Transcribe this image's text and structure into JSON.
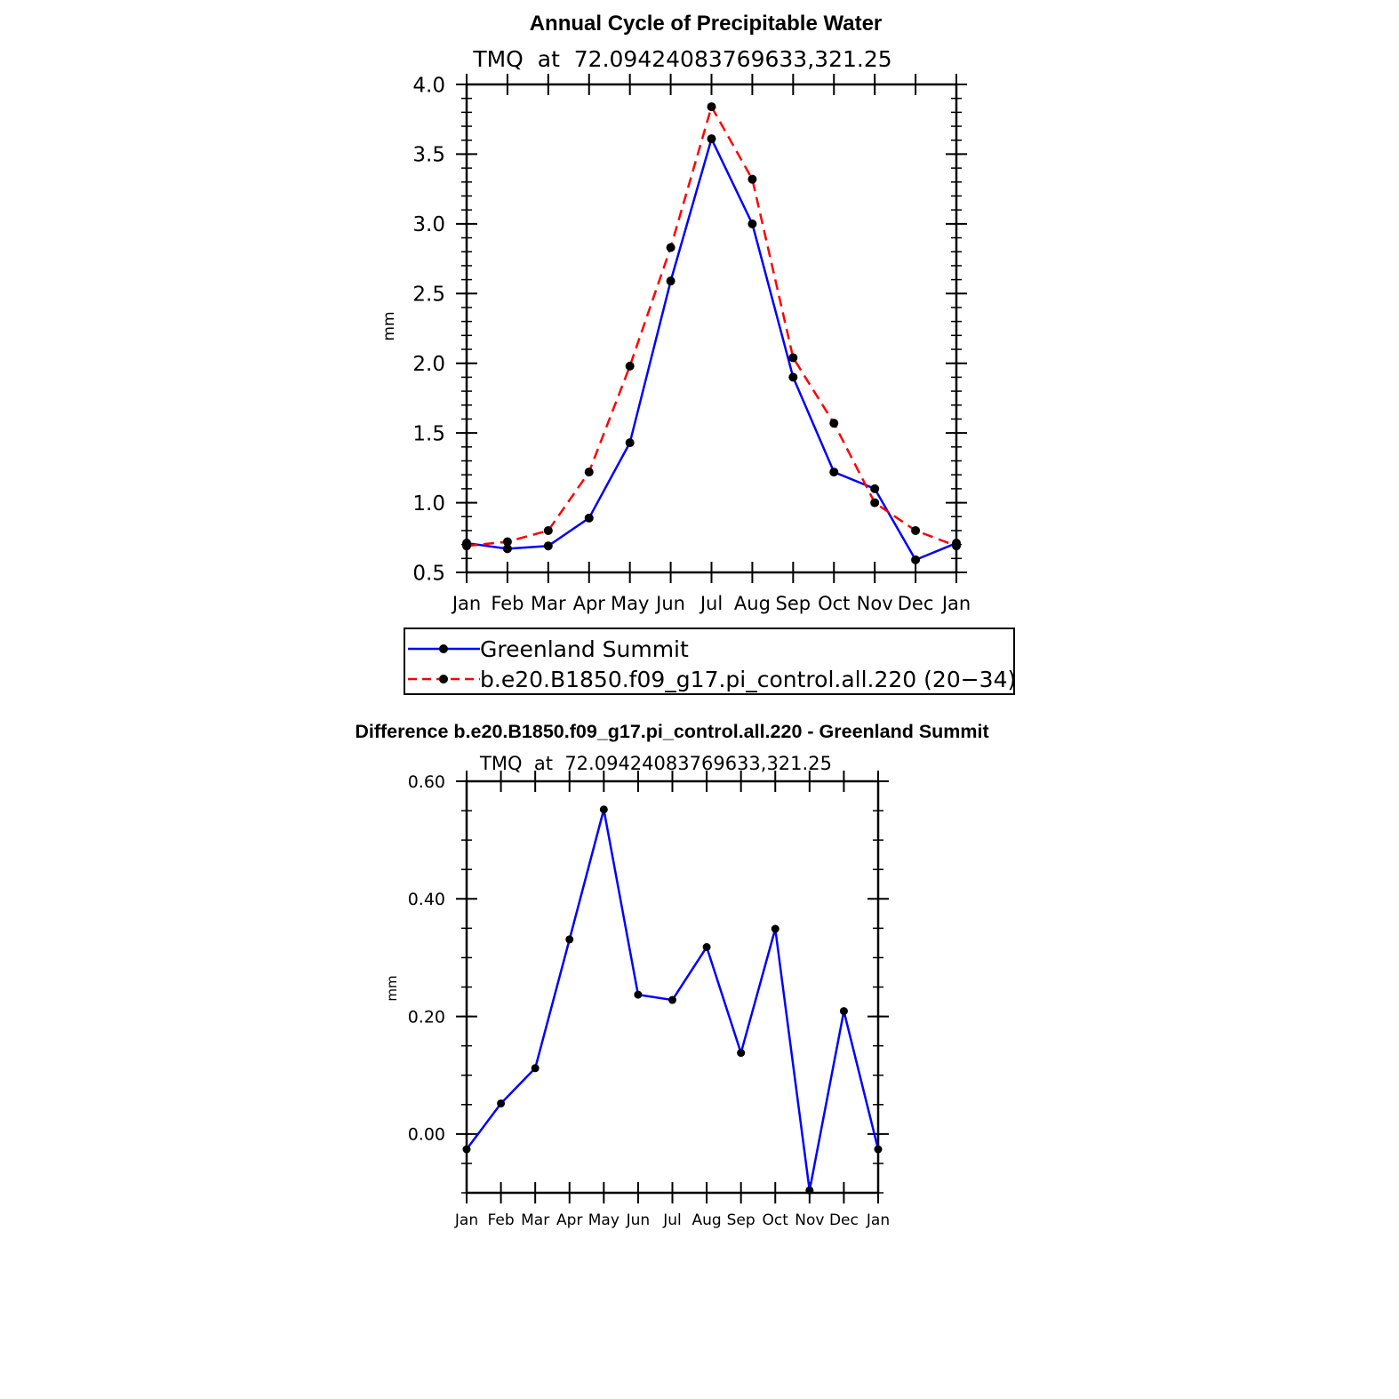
{
  "chart_data": [
    {
      "type": "line",
      "title": "Annual Cycle of Precipitable Water",
      "subtitle": "TMQ  at  72.09424083769633,321.25",
      "xlabel": "",
      "ylabel": "mm",
      "ylim": [
        0.5,
        4.0
      ],
      "yticks": [
        "0.5",
        "1.0",
        "1.5",
        "2.0",
        "2.5",
        "3.0",
        "3.5",
        "4.0"
      ],
      "grid": false,
      "legend_position": "bottom",
      "categories": [
        "Jan",
        "Feb",
        "Mar",
        "Apr",
        "May",
        "Jun",
        "Jul",
        "Aug",
        "Sep",
        "Oct",
        "Nov",
        "Dec",
        "Jan"
      ],
      "series": [
        {
          "name": "Greenland Summit",
          "color": "#0000ff",
          "dash": "solid",
          "values": [
            0.71,
            0.67,
            0.69,
            0.89,
            1.43,
            2.59,
            3.61,
            3.0,
            1.9,
            1.22,
            1.1,
            0.59,
            0.71
          ]
        },
        {
          "name": "b.e20.B1850.f09_g17.pi_control.all.220 (20−34)",
          "color": "#ff0000",
          "dash": "dashed",
          "values": [
            0.69,
            0.72,
            0.8,
            1.22,
            1.98,
            2.83,
            3.84,
            3.32,
            2.04,
            1.57,
            1.0,
            0.8,
            0.69
          ]
        }
      ]
    },
    {
      "type": "line",
      "title": "Difference b.e20.B1850.f09_g17.pi_control.all.220 - Greenland Summit",
      "subtitle": "TMQ  at  72.09424083769633,321.25",
      "xlabel": "",
      "ylabel": "mm",
      "ylim": [
        -0.1,
        0.6
      ],
      "yticks": [
        "0.00",
        "0.20",
        "0.40",
        "0.60"
      ],
      "grid": false,
      "categories": [
        "Jan",
        "Feb",
        "Mar",
        "Apr",
        "May",
        "Jun",
        "Jul",
        "Aug",
        "Sep",
        "Oct",
        "Nov",
        "Dec",
        "Jan"
      ],
      "series": [
        {
          "color": "#0000ff",
          "values": [
            -0.026,
            0.052,
            0.112,
            0.331,
            0.552,
            0.237,
            0.228,
            0.318,
            0.138,
            0.349,
            -0.096,
            0.209,
            -0.026
          ]
        }
      ]
    }
  ]
}
